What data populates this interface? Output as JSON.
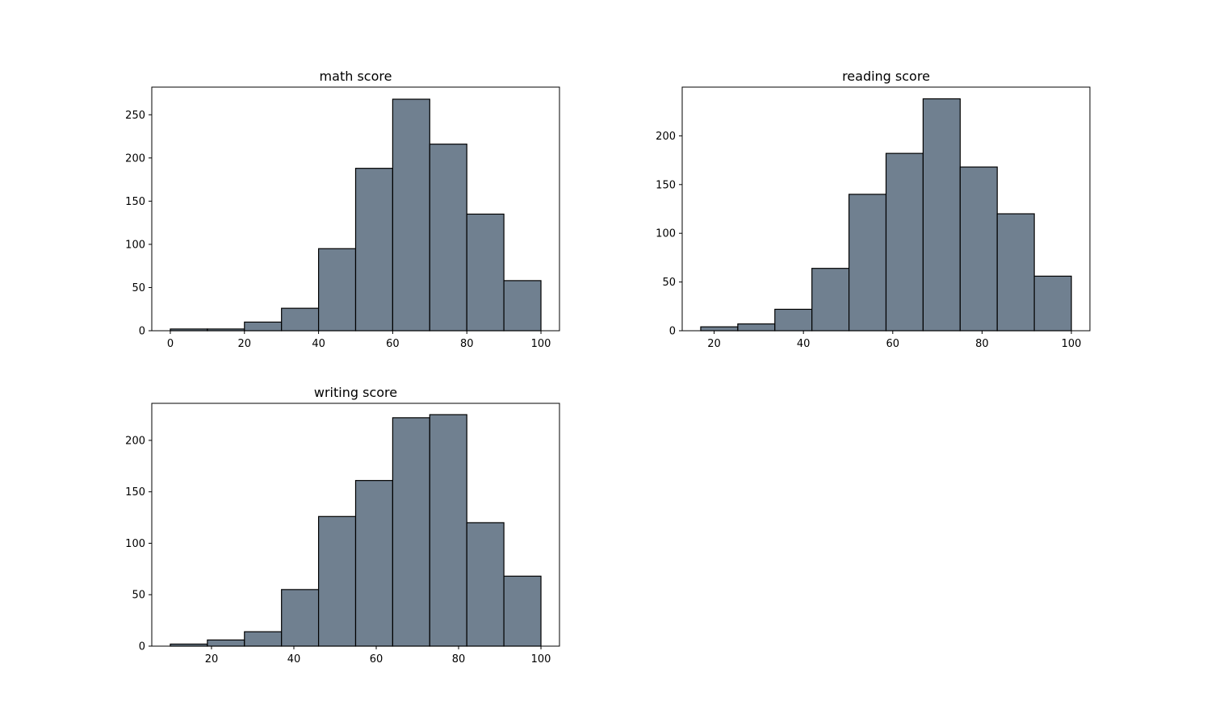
{
  "colors": {
    "bar_fill": "#708090",
    "bar_edge": "#000000",
    "background": "#ffffff"
  },
  "chart_data": [
    {
      "type": "bar",
      "title": "math score",
      "xlabel": "",
      "ylabel": "",
      "bin_edges": [
        0,
        10,
        20,
        30,
        40,
        50,
        60,
        70,
        80,
        90,
        100
      ],
      "values": [
        2,
        2,
        10,
        26,
        95,
        188,
        268,
        216,
        135,
        58
      ],
      "xlim": [
        -5,
        105
      ],
      "ylim": [
        0,
        282
      ],
      "xticks": [
        0,
        20,
        40,
        60,
        80,
        100
      ],
      "yticks": [
        0,
        50,
        100,
        150,
        200,
        250
      ]
    },
    {
      "type": "bar",
      "title": "reading score",
      "xlabel": "",
      "ylabel": "",
      "bin_edges": [
        17,
        25.3,
        33.6,
        41.9,
        50.2,
        58.5,
        66.8,
        75.1,
        83.4,
        91.7,
        100
      ],
      "values": [
        4,
        7,
        22,
        64,
        140,
        182,
        238,
        168,
        120,
        56
      ],
      "xlim": [
        12.85,
        104.15
      ],
      "ylim": [
        0,
        250
      ],
      "xticks": [
        20,
        40,
        60,
        80,
        100
      ],
      "yticks": [
        0,
        50,
        100,
        150,
        200
      ]
    },
    {
      "type": "bar",
      "title": "writing score",
      "xlabel": "",
      "ylabel": "",
      "bin_edges": [
        10,
        19,
        28,
        37,
        46,
        55,
        64,
        73,
        82,
        91,
        100
      ],
      "values": [
        2,
        6,
        14,
        55,
        126,
        161,
        222,
        225,
        120,
        68
      ],
      "xlim": [
        5.5,
        104.5
      ],
      "ylim": [
        0,
        236
      ],
      "xticks": [
        20,
        40,
        60,
        80,
        100
      ],
      "yticks": [
        0,
        50,
        100,
        150,
        200
      ]
    }
  ]
}
